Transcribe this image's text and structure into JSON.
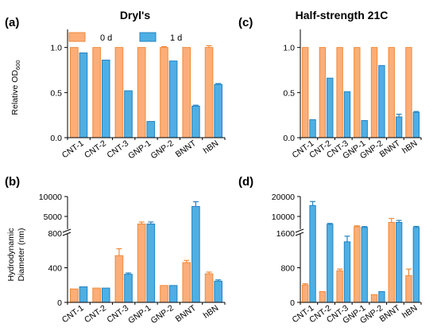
{
  "titles": {
    "left": "Dryl's",
    "right": "Half-strength 21C"
  },
  "panel_labels": [
    "(a)",
    "(b)",
    "(c)",
    "(d)"
  ],
  "ylabels": {
    "top_main": "Relative OD",
    "top_sub": "600",
    "bottom_line1": "Hydrodynamic",
    "bottom_line2": "Diameter (nm)"
  },
  "legend": {
    "series": [
      "0 d",
      "1 d"
    ]
  },
  "colors": {
    "d0_fill": "#FDAE78",
    "d0_edge": "#F08A3A",
    "d1_fill": "#4FAFE3",
    "d1_edge": "#2483C2"
  },
  "chart_data": [
    {
      "id": "a",
      "type": "bar",
      "categories": [
        "CNT-1",
        "CNT-2",
        "CNT-3",
        "GNP-1",
        "GNP-2",
        "BNNT",
        "hBN"
      ],
      "series": [
        {
          "name": "0 d",
          "values": [
            1.0,
            1.0,
            1.0,
            1.0,
            1.0,
            1.0,
            1.0
          ],
          "errors": [
            0,
            0,
            0,
            0,
            0.01,
            0,
            0.02
          ]
        },
        {
          "name": "1 d",
          "values": [
            0.94,
            0.86,
            0.52,
            0.18,
            0.85,
            0.35,
            0.59
          ],
          "errors": [
            0,
            0,
            0,
            0,
            0,
            0.01,
            0.01
          ]
        }
      ],
      "ylim": [
        0,
        1.2
      ],
      "yticks": [
        "0.0",
        "0.5",
        "1.0"
      ],
      "ytick_values": [
        0,
        0.5,
        1.0
      ]
    },
    {
      "id": "c",
      "type": "bar",
      "categories": [
        "CNT-1",
        "CNT-2",
        "CNT-3",
        "GNP-1",
        "GNP-2",
        "BNNT",
        "hBN"
      ],
      "series": [
        {
          "name": "0 d",
          "values": [
            1.0,
            1.0,
            1.0,
            1.0,
            1.0,
            1.0,
            1.0
          ],
          "errors": [
            0,
            0,
            0,
            0,
            0,
            0,
            0
          ]
        },
        {
          "name": "1 d",
          "values": [
            0.2,
            0.66,
            0.51,
            0.19,
            0.8,
            0.23,
            0.28
          ],
          "errors": [
            0,
            0,
            0,
            0,
            0,
            0.03,
            0.01
          ]
        }
      ],
      "ylim": [
        0,
        1.2
      ],
      "yticks": [
        "0.0",
        "0.5",
        "1.0"
      ],
      "ytick_values": [
        0,
        0.5,
        1.0
      ]
    },
    {
      "id": "b",
      "type": "bar",
      "broken_axis": true,
      "categories": [
        "CNT-1",
        "CNT-2",
        "CNT-3",
        "GNP-1",
        "GNP-2",
        "BNNT",
        "hBN"
      ],
      "series": [
        {
          "name": "0 d",
          "values": [
            155,
            165,
            540,
            3100,
            195,
            460,
            330
          ],
          "errors": [
            0,
            0,
            80,
            500,
            0,
            25,
            20
          ]
        },
        {
          "name": "1 d",
          "values": [
            180,
            165,
            325,
            3100,
            195,
            7500,
            245
          ],
          "errors": [
            0,
            0,
            15,
            500,
            0,
            1200,
            15
          ]
        }
      ],
      "lower_range": [
        0,
        800
      ],
      "upper_range": [
        800,
        10000
      ],
      "lower_ticks": [
        "0",
        "400",
        "800"
      ],
      "lower_tick_values": [
        0,
        400,
        800
      ],
      "upper_ticks": [
        "5000",
        "10000"
      ],
      "upper_tick_values": [
        5000,
        10000
      ]
    },
    {
      "id": "d",
      "type": "bar",
      "broken_axis": true,
      "categories": [
        "CNT-1",
        "CNT-2",
        "CNT-3",
        "GNP-1",
        "GNP-2",
        "BNNT",
        "hBN"
      ],
      "series": [
        {
          "name": "0 d",
          "values": [
            400,
            250,
            730,
            4800,
            180,
            7000,
            620
          ],
          "errors": [
            30,
            0,
            40,
            500,
            0,
            2000,
            150
          ]
        },
        {
          "name": "1 d",
          "values": [
            15500,
            6000,
            1400,
            4500,
            250,
            7000,
            4500
          ],
          "errors": [
            2000,
            500,
            130,
            400,
            0,
            1000,
            500
          ]
        }
      ],
      "lower_range": [
        0,
        1600
      ],
      "upper_range": [
        1600,
        20000
      ],
      "lower_ticks": [
        "0",
        "800",
        "1600"
      ],
      "lower_tick_values": [
        0,
        800,
        1600
      ],
      "upper_ticks": [
        "10000",
        "20000"
      ],
      "upper_tick_values": [
        10000,
        20000
      ]
    }
  ]
}
